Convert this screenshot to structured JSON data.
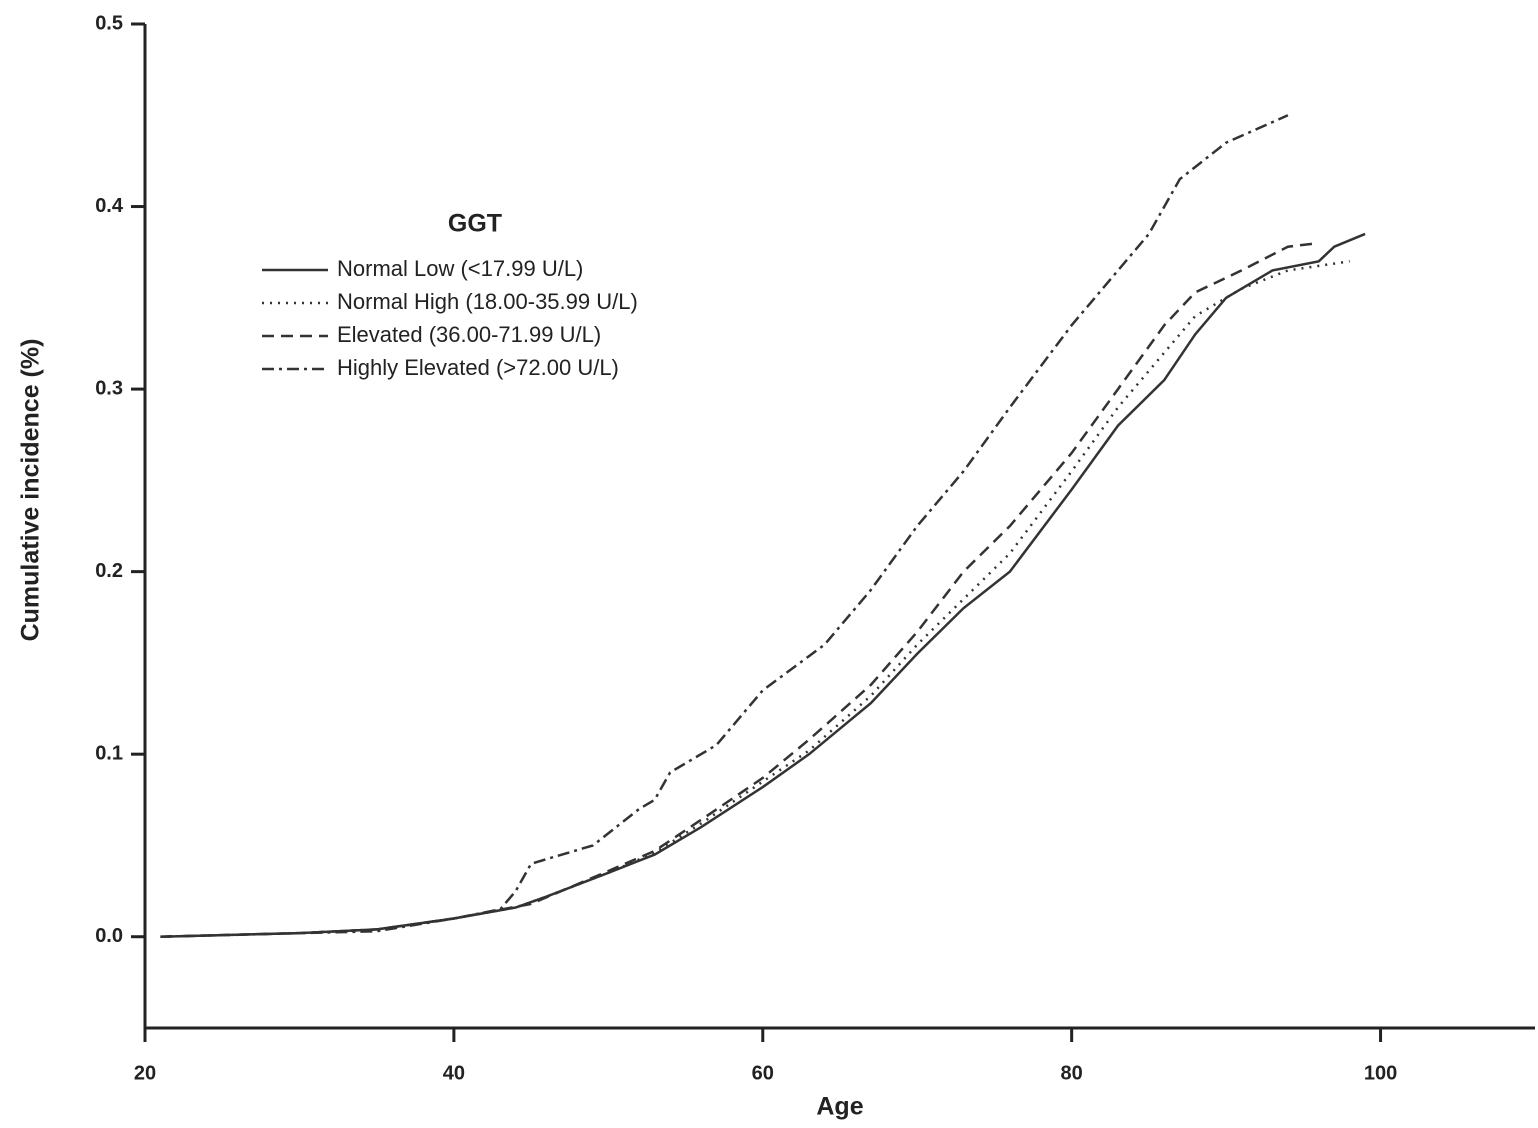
{
  "chart_data": {
    "type": "line",
    "xlabel": "Age",
    "ylabel": "Cumulative incidence (%)",
    "xlim": [
      20,
      110
    ],
    "xticks": [
      20,
      40,
      60,
      80,
      100
    ],
    "ylim": [
      -0.05,
      0.5
    ],
    "yticks": [
      {
        "value": 0,
        "label": "0.0"
      },
      0.1,
      0.2,
      0.3,
      0.4,
      0.5
    ],
    "legend_title": "GGT",
    "legend_position": "upper left",
    "series": [
      {
        "name": "Normal Low (<17.99 U/L)",
        "color": "#333333",
        "style": "solid",
        "x": [
          21,
          30,
          35,
          40,
          44,
          46,
          50,
          53,
          56,
          60,
          63,
          67,
          70,
          73,
          76,
          80,
          83,
          86,
          88,
          90,
          93,
          96,
          97,
          99
        ],
        "values": [
          0,
          0.002,
          0.004,
          0.01,
          0.016,
          0.022,
          0.035,
          0.045,
          0.06,
          0.082,
          0.1,
          0.128,
          0.155,
          0.18,
          0.2,
          0.245,
          0.28,
          0.305,
          0.33,
          0.35,
          0.365,
          0.37,
          0.378,
          0.385
        ]
      },
      {
        "name": "Normal High (18.00-35.99 U/L)",
        "color": "#333333",
        "style": "dotted",
        "x": [
          21,
          30,
          35,
          40,
          44,
          46,
          50,
          53,
          56,
          60,
          63,
          67,
          70,
          73,
          76,
          80,
          83,
          86,
          88,
          91,
          94,
          98
        ],
        "values": [
          0,
          0.002,
          0.004,
          0.01,
          0.016,
          0.022,
          0.035,
          0.046,
          0.062,
          0.085,
          0.102,
          0.132,
          0.16,
          0.185,
          0.21,
          0.255,
          0.29,
          0.32,
          0.34,
          0.355,
          0.365,
          0.37
        ]
      },
      {
        "name": "Elevated (36.00-71.99 U/L)",
        "color": "#333333",
        "style": "dashed",
        "x": [
          21,
          30,
          35,
          40,
          45,
          50,
          53,
          56,
          60,
          63,
          67,
          70,
          73,
          76,
          80,
          83,
          86,
          88,
          91,
          94,
          96
        ],
        "values": [
          0,
          0.002,
          0.004,
          0.01,
          0.018,
          0.036,
          0.047,
          0.064,
          0.087,
          0.108,
          0.138,
          0.167,
          0.2,
          0.225,
          0.265,
          0.3,
          0.335,
          0.353,
          0.365,
          0.378,
          0.38
        ]
      },
      {
        "name": "Highly Elevated (>72.00 U/L)",
        "color": "#333333",
        "style": "dashdot",
        "x": [
          21,
          35,
          40,
          43,
          44,
          45,
          49,
          52,
          53,
          54,
          57,
          60,
          64,
          67,
          70,
          73,
          76,
          80,
          83,
          85,
          87,
          90,
          94
        ],
        "values": [
          0,
          0.003,
          0.01,
          0.015,
          0.025,
          0.04,
          0.05,
          0.07,
          0.075,
          0.09,
          0.105,
          0.135,
          0.16,
          0.19,
          0.225,
          0.255,
          0.29,
          0.335,
          0.365,
          0.385,
          0.415,
          0.435,
          0.45
        ]
      }
    ]
  }
}
